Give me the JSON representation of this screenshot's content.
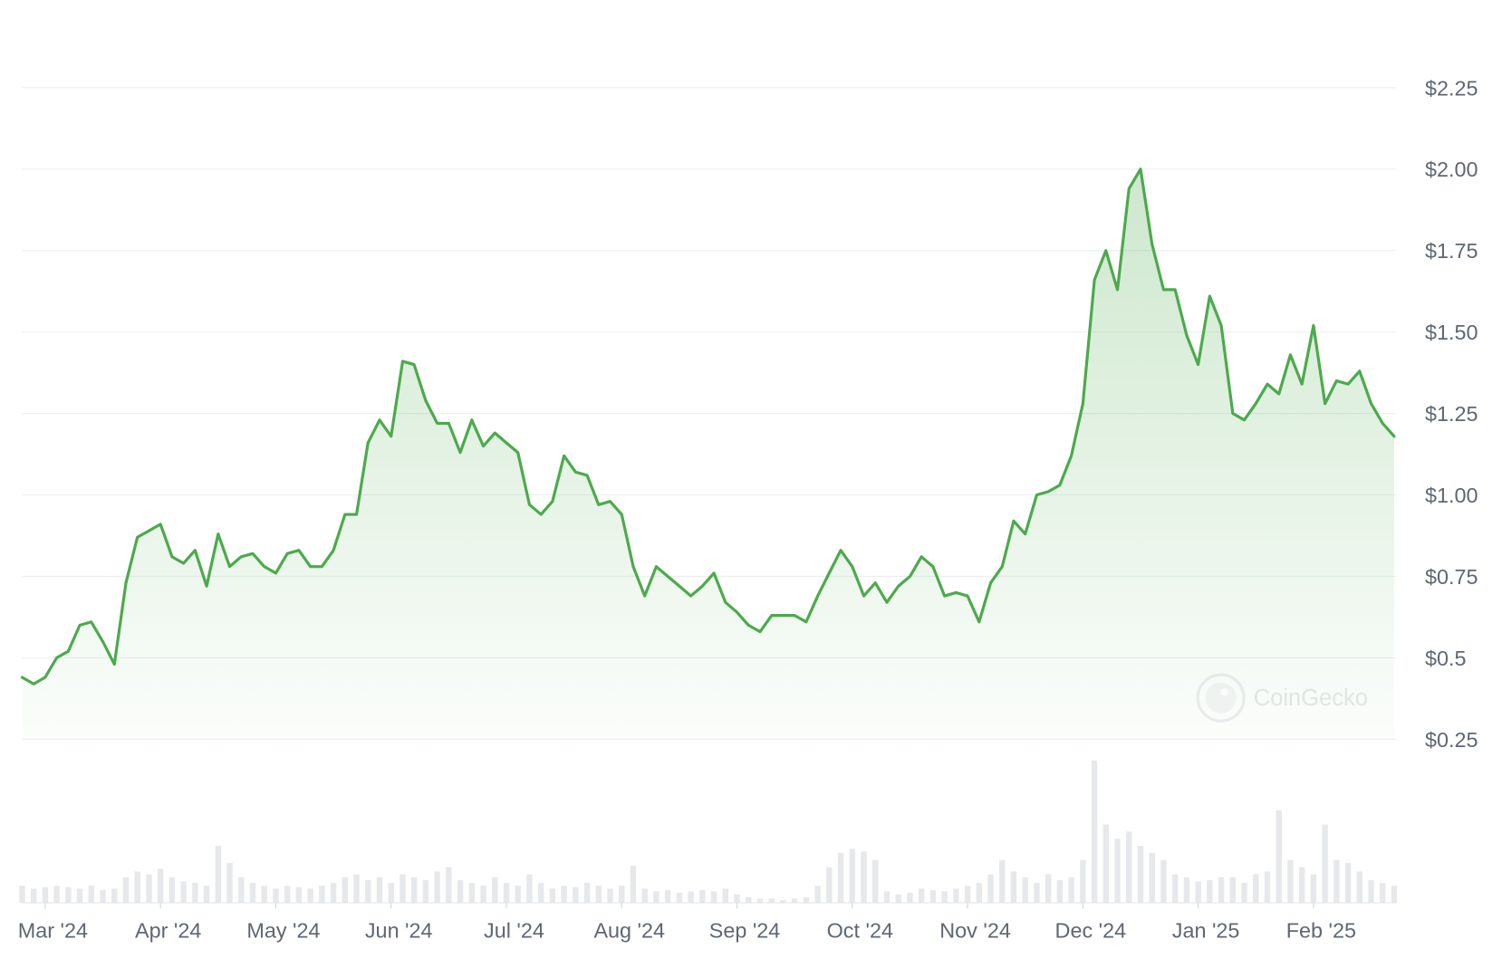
{
  "chart_data": {
    "type": "line",
    "color": "#4caa4c",
    "volume_color": "#e6e8eb",
    "grid": true,
    "watermark": "CoinGecko",
    "ylim": [
      0.25,
      2.25
    ],
    "yticks": [
      {
        "value": 0.25,
        "label": "$0.25"
      },
      {
        "value": 0.5,
        "label": "$0.5"
      },
      {
        "value": 0.75,
        "label": "$0.75"
      },
      {
        "value": 1.0,
        "label": "$1.00"
      },
      {
        "value": 1.25,
        "label": "$1.25"
      },
      {
        "value": 1.5,
        "label": "$1.50"
      },
      {
        "value": 1.75,
        "label": "$1.75"
      },
      {
        "value": 2.0,
        "label": "$2.00"
      },
      {
        "value": 2.25,
        "label": "$2.25"
      }
    ],
    "categories": [
      null,
      null,
      "Mar '24",
      null,
      null,
      null,
      null,
      null,
      null,
      null,
      null,
      null,
      "Apr '24",
      null,
      null,
      null,
      null,
      null,
      null,
      null,
      null,
      null,
      "May '24",
      null,
      null,
      null,
      null,
      null,
      null,
      null,
      null,
      null,
      "Jun '24",
      null,
      null,
      null,
      null,
      null,
      null,
      null,
      null,
      null,
      "Jul '24",
      null,
      null,
      null,
      null,
      null,
      null,
      null,
      null,
      null,
      "Aug '24",
      null,
      null,
      null,
      null,
      null,
      null,
      null,
      null,
      null,
      "Sep '24",
      null,
      null,
      null,
      null,
      null,
      null,
      null,
      null,
      null,
      "Oct '24",
      null,
      null,
      null,
      null,
      null,
      null,
      null,
      null,
      null,
      "Nov '24",
      null,
      null,
      null,
      null,
      null,
      null,
      null,
      null,
      null,
      "Dec '24",
      null,
      null,
      null,
      null,
      null,
      null,
      null,
      null,
      null,
      "Jan '25",
      null,
      null,
      null,
      null,
      null,
      null,
      null,
      null,
      null,
      "Feb '25",
      null,
      null,
      null,
      null,
      null,
      null,
      null
    ],
    "values": [
      0.44,
      0.42,
      0.44,
      0.5,
      0.52,
      0.6,
      0.61,
      0.55,
      0.48,
      0.73,
      0.87,
      0.89,
      0.91,
      0.81,
      0.79,
      0.83,
      0.72,
      0.88,
      0.78,
      0.81,
      0.82,
      0.78,
      0.76,
      0.82,
      0.83,
      0.78,
      0.78,
      0.83,
      0.94,
      0.94,
      1.16,
      1.23,
      1.18,
      1.41,
      1.4,
      1.29,
      1.22,
      1.22,
      1.13,
      1.23,
      1.15,
      1.19,
      1.16,
      1.13,
      0.97,
      0.94,
      0.98,
      1.12,
      1.07,
      1.06,
      0.97,
      0.98,
      0.94,
      0.78,
      0.69,
      0.78,
      0.75,
      0.72,
      0.69,
      0.72,
      0.76,
      0.67,
      0.64,
      0.6,
      0.58,
      0.63,
      0.63,
      0.63,
      0.61,
      0.69,
      0.76,
      0.83,
      0.78,
      0.69,
      0.73,
      0.67,
      0.72,
      0.75,
      0.81,
      0.78,
      0.69,
      0.7,
      0.69,
      0.61,
      0.73,
      0.78,
      0.92,
      0.88,
      1.0,
      1.01,
      1.03,
      1.12,
      1.28,
      1.66,
      1.75,
      1.63,
      1.94,
      2.0,
      1.77,
      1.63,
      1.63,
      1.49,
      1.4,
      1.61,
      1.52,
      1.25,
      1.23,
      1.28,
      1.34,
      1.31,
      1.43,
      1.34,
      1.52,
      1.28,
      1.35,
      1.34,
      1.38,
      1.28,
      1.22,
      1.18
    ],
    "volume": [
      12,
      10,
      11,
      12,
      11,
      10,
      12,
      9,
      10,
      18,
      22,
      20,
      24,
      18,
      15,
      14,
      12,
      40,
      28,
      18,
      14,
      12,
      10,
      12,
      11,
      10,
      12,
      14,
      18,
      20,
      16,
      18,
      14,
      20,
      18,
      16,
      22,
      25,
      16,
      14,
      12,
      18,
      14,
      12,
      20,
      14,
      10,
      12,
      11,
      14,
      12,
      10,
      12,
      26,
      10,
      8,
      9,
      7,
      8,
      9,
      8,
      10,
      6,
      4,
      3,
      3,
      2,
      3,
      4,
      12,
      25,
      35,
      38,
      36,
      30,
      8,
      6,
      7,
      10,
      9,
      8,
      10,
      12,
      14,
      20,
      30,
      22,
      18,
      14,
      20,
      16,
      18,
      30,
      100,
      55,
      45,
      50,
      40,
      35,
      30,
      20,
      18,
      15,
      16,
      18,
      18,
      14,
      20,
      22,
      65,
      30,
      25,
      20,
      55,
      30,
      28,
      22,
      16,
      14,
      12
    ]
  }
}
